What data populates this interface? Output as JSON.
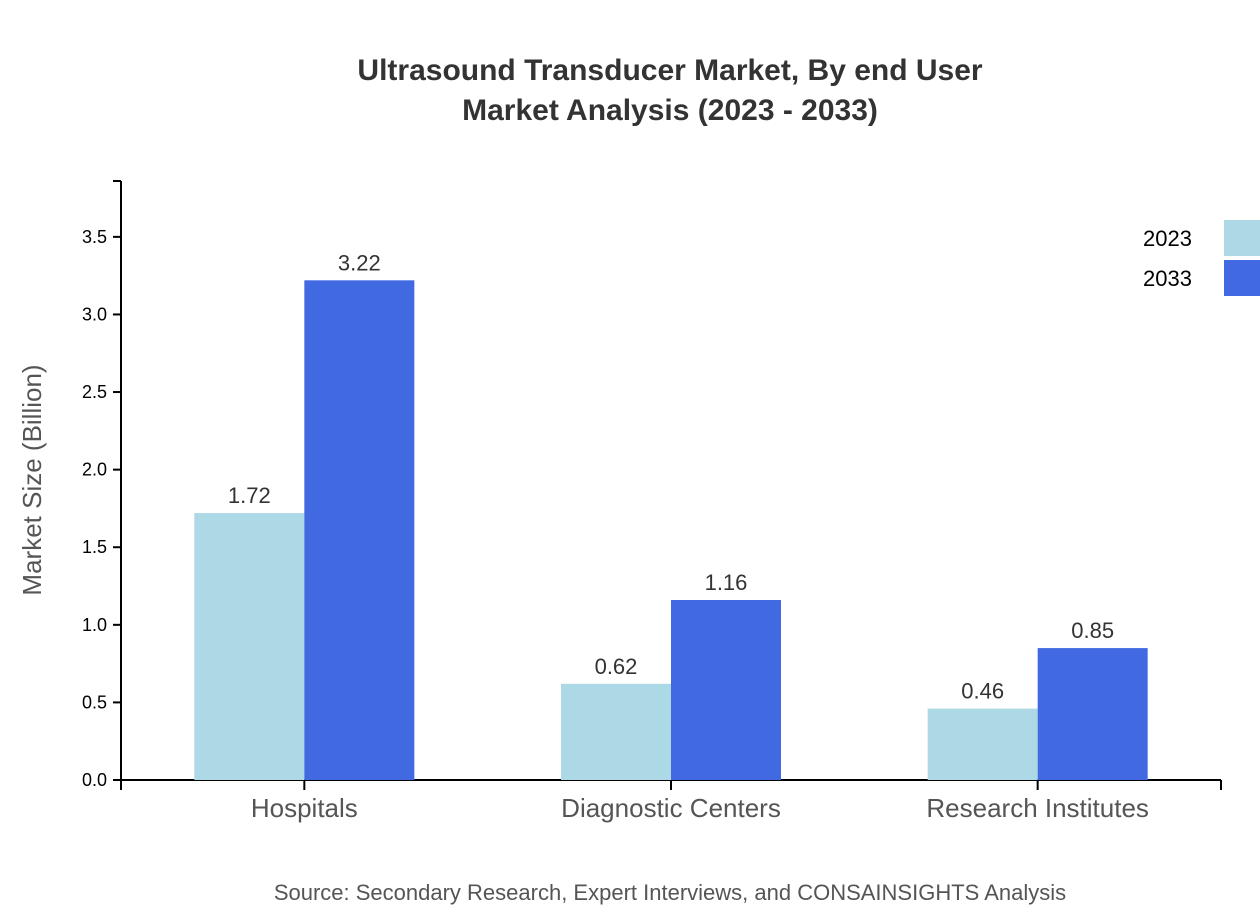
{
  "chart_data": {
    "type": "bar",
    "title": [
      "Ultrasound Transducer Market, By end User",
      "Market Analysis (2023 - 2033)"
    ],
    "ylabel": "Market Size (Billion)",
    "xlabel": "",
    "categories": [
      "Hospitals",
      "Diagnostic Centers",
      "Research Institutes"
    ],
    "series": [
      {
        "name": "2023",
        "values": [
          1.72,
          0.62,
          0.46
        ],
        "color": "#ADD8E6"
      },
      {
        "name": "2033",
        "values": [
          3.22,
          1.16,
          0.85
        ],
        "color": "#4169E1"
      }
    ],
    "ylim": [
      0,
      3.86
    ],
    "yticks": [
      "0.0",
      "0.5",
      "1.0",
      "1.5",
      "2.0",
      "2.5",
      "3.0",
      "3.5"
    ],
    "grid": false,
    "legend_position": "top-right",
    "source": "Source: Secondary Research, Expert Interviews, and CONSAINSIGHTS Analysis"
  }
}
